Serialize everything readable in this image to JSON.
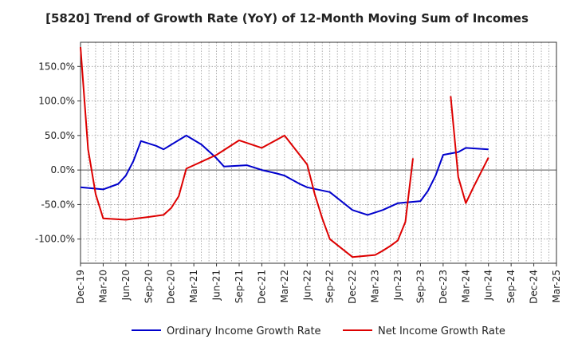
{
  "chart_data": {
    "type": "line",
    "title": "[5820]  Trend of Growth Rate (YoY) of 12-Month Moving Sum of Incomes",
    "xlabel": "",
    "ylabel": "",
    "x_tick_labels": [
      "Dec-19",
      "Mar-20",
      "Jun-20",
      "Sep-20",
      "Dec-20",
      "Mar-21",
      "Jun-21",
      "Sep-21",
      "Dec-21",
      "Mar-22",
      "Jun-22",
      "Sep-22",
      "Dec-22",
      "Mar-23",
      "Jun-23",
      "Sep-23",
      "Dec-23",
      "Mar-24",
      "Jun-24",
      "Sep-24",
      "Dec-24",
      "Mar-25"
    ],
    "y_ticks": [
      -100,
      -50,
      0,
      50,
      100,
      150
    ],
    "y_tick_labels": [
      "-100.0%",
      "-50.0%",
      "0.0%",
      "50.0%",
      "100.0%",
      "150.0%"
    ],
    "ylim": [
      -135,
      185
    ],
    "grid": true,
    "legend_position": "bottom",
    "series": [
      {
        "name": "Ordinary Income Growth Rate",
        "color": "#0000cc",
        "points": [
          [
            0,
            -25
          ],
          [
            2,
            -27
          ],
          [
            3,
            -28
          ],
          [
            5,
            -20
          ],
          [
            6,
            -8
          ],
          [
            7,
            13
          ],
          [
            8,
            42
          ],
          [
            10,
            35
          ],
          [
            11,
            30
          ],
          [
            14,
            50
          ],
          [
            16,
            37
          ],
          [
            18,
            17
          ],
          [
            19,
            5
          ],
          [
            22,
            7
          ],
          [
            24,
            0
          ],
          [
            26,
            -5
          ],
          [
            27,
            -8
          ],
          [
            29,
            -20
          ],
          [
            30,
            -25
          ],
          [
            33,
            -32
          ],
          [
            36,
            -58
          ],
          [
            38,
            -65
          ],
          [
            40,
            -58
          ],
          [
            42,
            -48
          ],
          [
            44,
            -46
          ],
          [
            45,
            -45
          ],
          [
            46,
            -30
          ],
          [
            47,
            -8
          ],
          [
            48,
            22
          ],
          [
            50,
            26
          ],
          [
            51,
            32
          ],
          [
            54,
            30
          ]
        ]
      },
      {
        "name": "Net Income Growth Rate",
        "color": "#dd0000",
        "points": [
          [
            0,
            178
          ],
          [
            1,
            30
          ],
          [
            2,
            -35
          ],
          [
            3,
            -70
          ],
          [
            6,
            -72
          ],
          [
            9,
            -68
          ],
          [
            11,
            -65
          ],
          [
            12,
            -55
          ],
          [
            13,
            -38
          ],
          [
            14,
            2
          ],
          [
            15,
            7
          ],
          [
            16,
            12
          ],
          [
            18,
            22
          ],
          [
            21,
            43
          ],
          [
            24,
            32
          ],
          [
            27,
            50
          ],
          [
            30,
            8
          ],
          [
            31,
            -35
          ],
          [
            32,
            -70
          ],
          [
            33,
            -100
          ],
          [
            36,
            -126
          ],
          [
            39,
            -123
          ],
          [
            40,
            -117
          ],
          [
            41,
            -110
          ],
          [
            42,
            -102
          ],
          [
            43,
            -75
          ],
          [
            44,
            17
          ]
        ]
      },
      {
        "name": "Net Income Growth Rate",
        "color": "#dd0000",
        "points": [
          [
            49,
            107
          ],
          [
            50,
            -10
          ],
          [
            51,
            -48
          ],
          [
            52,
            -25
          ],
          [
            54,
            18
          ]
        ]
      }
    ]
  }
}
